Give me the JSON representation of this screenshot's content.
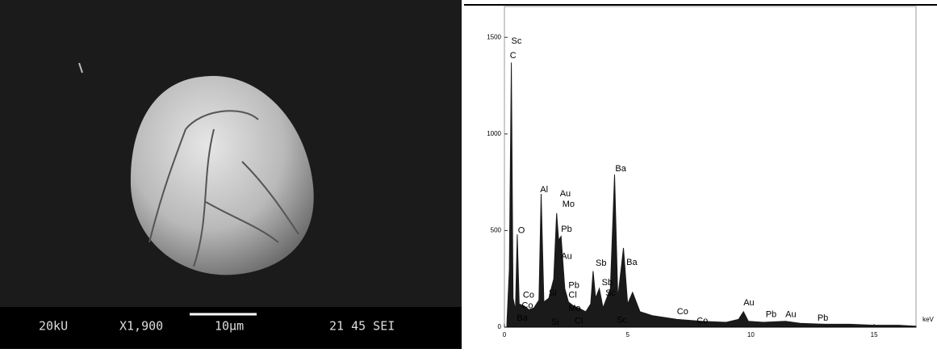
{
  "sem_image": {
    "labels": [
      "20kU",
      "X1,900",
      "10μm",
      "21 45 SEI"
    ]
  },
  "chart_data": {
    "type": "area",
    "xlabel": "keV",
    "color": "#1a1a1a",
    "x": [
      0.1,
      0.2,
      0.28,
      0.35,
      0.45,
      0.52,
      0.6,
      0.8,
      1.0,
      1.2,
      1.4,
      1.49,
      1.6,
      1.8,
      2.0,
      2.12,
      2.2,
      2.3,
      2.45,
      2.6,
      2.8,
      3.0,
      3.3,
      3.5,
      3.6,
      3.7,
      3.85,
      4.0,
      4.3,
      4.47,
      4.6,
      4.83,
      5.0,
      5.2,
      5.5,
      6.0,
      7.0,
      8.0,
      9.0,
      9.5,
      9.7,
      9.9,
      10.5,
      11.4,
      12.0,
      13.0,
      14.0,
      15.0,
      16.0,
      16.7
    ],
    "values": [
      20,
      300,
      1370,
      150,
      90,
      480,
      120,
      110,
      90,
      100,
      140,
      690,
      130,
      150,
      250,
      590,
      450,
      470,
      200,
      130,
      110,
      100,
      80,
      120,
      290,
      150,
      200,
      100,
      200,
      790,
      150,
      410,
      120,
      180,
      80,
      60,
      40,
      30,
      25,
      40,
      80,
      30,
      25,
      30,
      20,
      15,
      15,
      10,
      10,
      5
    ],
    "xlim": [
      0,
      16.7
    ],
    "ylim": [
      0,
      1660
    ],
    "xticks": [
      0,
      5,
      10,
      15
    ],
    "yticks": [
      0,
      500,
      1000,
      1500
    ],
    "annotations": [
      {
        "text": "Sc",
        "x": 0.28,
        "y": 1480
      },
      {
        "text": "C",
        "x": 0.22,
        "y": 1405
      },
      {
        "text": "O",
        "x": 0.55,
        "y": 500
      },
      {
        "text": "Co",
        "x": 0.75,
        "y": 165
      },
      {
        "text": "Co",
        "x": 0.7,
        "y": 110
      },
      {
        "text": "Ba",
        "x": 0.5,
        "y": 45
      },
      {
        "text": "Al",
        "x": 1.45,
        "y": 710
      },
      {
        "text": "Au",
        "x": 2.25,
        "y": 690
      },
      {
        "text": "Mo",
        "x": 2.35,
        "y": 635
      },
      {
        "text": "Pb",
        "x": 2.3,
        "y": 505
      },
      {
        "text": "Au",
        "x": 2.3,
        "y": 365
      },
      {
        "text": "Si",
        "x": 1.8,
        "y": 175
      },
      {
        "text": "Pb",
        "x": 2.6,
        "y": 215
      },
      {
        "text": "Cl",
        "x": 2.6,
        "y": 165
      },
      {
        "text": "Mo",
        "x": 2.6,
        "y": 95
      },
      {
        "text": "Si",
        "x": 1.9,
        "y": 25
      },
      {
        "text": "Cl",
        "x": 2.85,
        "y": 30
      },
      {
        "text": "Sb",
        "x": 3.7,
        "y": 330
      },
      {
        "text": "Sb",
        "x": 3.95,
        "y": 230
      },
      {
        "text": "Sc",
        "x": 4.1,
        "y": 175
      },
      {
        "text": "Ba",
        "x": 4.5,
        "y": 820
      },
      {
        "text": "Ba",
        "x": 4.95,
        "y": 335
      },
      {
        "text": "Sc",
        "x": 4.55,
        "y": 35
      },
      {
        "text": "Co",
        "x": 7.0,
        "y": 80
      },
      {
        "text": "Co",
        "x": 7.8,
        "y": 30
      },
      {
        "text": "Au",
        "x": 9.7,
        "y": 125
      },
      {
        "text": "Pb",
        "x": 10.6,
        "y": 65
      },
      {
        "text": "Au",
        "x": 11.4,
        "y": 65
      },
      {
        "text": "Pb",
        "x": 12.7,
        "y": 45
      }
    ]
  }
}
